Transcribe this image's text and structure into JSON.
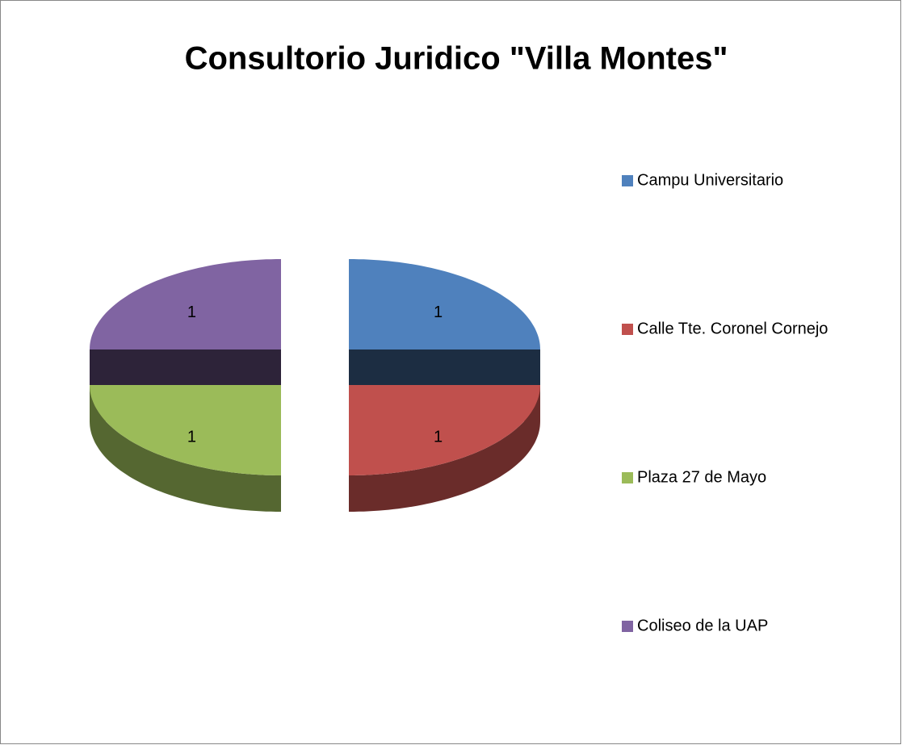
{
  "chart_data": {
    "type": "pie",
    "title": "Consultorio Juridico \"Villa Montes\"",
    "categories": [
      "Campu Universitario",
      "Calle Tte. Coronel Cornejo",
      "Plaza 27 de Mayo",
      "Coliseo de la UAP"
    ],
    "values": [
      1,
      1,
      1,
      1
    ],
    "colors": [
      "#4f81bd",
      "#c0504d",
      "#9bbb59",
      "#8064a2"
    ],
    "legend": "right",
    "exploded": true,
    "three_d": true
  }
}
